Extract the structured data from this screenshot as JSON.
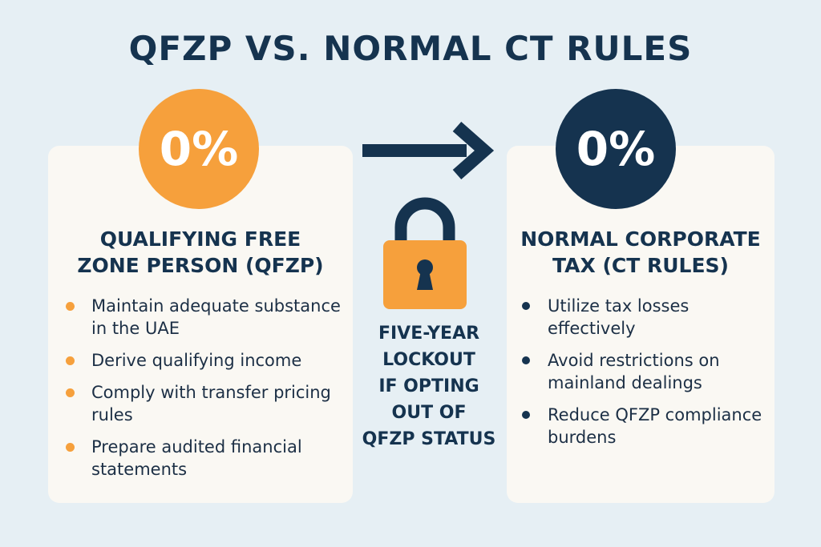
{
  "title": "QFZP VS. NORMAL CT RULES",
  "colors": {
    "accent_orange": "#f6a03c",
    "navy": "#15334f",
    "background": "#e6eff4",
    "card": "#faf8f3"
  },
  "left": {
    "rate": "0%",
    "title_lines": [
      "QUALIFYING FREE",
      "ZONE PERSON (QFZP)"
    ],
    "items": [
      "Maintain adequate substance in the UAE",
      "Derive qualifying income",
      "Comply with transfer pricing rules",
      "Prepare audited financial statements"
    ]
  },
  "center": {
    "arrow_icon": "arrow-right-icon",
    "lock_icon": "padlock-icon",
    "lockout_lines": [
      "FIVE-YEAR",
      "LOCKOUT",
      "IF OPTING",
      "OUT OF",
      "QFZP STATUS"
    ]
  },
  "right": {
    "rate": "0%",
    "title_lines": [
      "NORMAL CORPORATE",
      "TAX (CT RULES)"
    ],
    "items": [
      "Utilize tax losses effectively",
      "Avoid restrictions on mainland dealings",
      "Reduce QFZP compliance burdens"
    ]
  }
}
